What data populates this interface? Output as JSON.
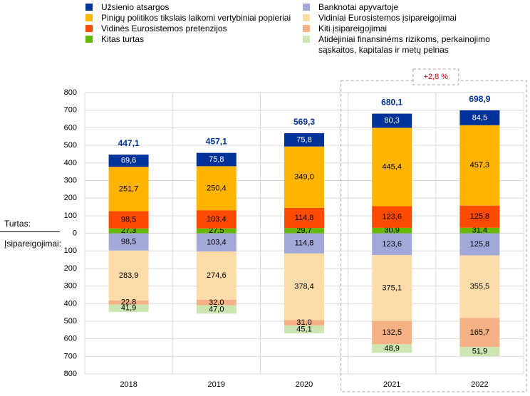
{
  "colors": {
    "uzsienio_atsargos": "#003299",
    "pinigu_politikos": "#ffb400",
    "vidines_pretenzijos": "#ff4b00",
    "kitas_turtas": "#65b800",
    "banknotai": "#a2a9d9",
    "vidiniai_isipareigojimai": "#fddcaa",
    "kiti_isipareigojimai": "#f5b183",
    "atidejiniai": "#cde5b0",
    "total_label": "#003299",
    "annotation": "#cc0000"
  },
  "legend": {
    "left": [
      {
        "key": "uzsienio_atsargos",
        "label": "Užsienio atsargos"
      },
      {
        "key": "pinigu_politikos",
        "label": "Pinigų politikos tikslais laikomi vertybiniai popieriai"
      },
      {
        "key": "vidines_pretenzijos",
        "label": "Vidinės Eurosistemos pretenzijos"
      },
      {
        "key": "kitas_turtas",
        "label": "Kitas turtas"
      }
    ],
    "right": [
      {
        "key": "banknotai",
        "label": "Banknotai apyvartoje"
      },
      {
        "key": "vidiniai_isipareigojimai",
        "label": "Vidiniai Eurosistemos įsipareigojimai"
      },
      {
        "key": "kiti_isipareigojimai",
        "label": "Kiti įsipareigojimai"
      },
      {
        "key": "atidejiniai",
        "label": "Atidėjiniai finansinėms rizikoms, perkainojimo",
        "label2": "sąskaitos, kapitalas ir metų pelnas"
      }
    ]
  },
  "side_labels": {
    "assets": "Turtas:",
    "liabilities": "Įsipareigojimai:"
  },
  "annotation": {
    "text": "+2,8 %"
  },
  "chart_data": {
    "type": "bar",
    "stacked": true,
    "categories": [
      "2018",
      "2019",
      "2020",
      "2021",
      "2022"
    ],
    "y_tick_labels": [
      "800",
      "700",
      "600",
      "500",
      "400",
      "300",
      "200",
      "100",
      "0",
      "100",
      "200",
      "300",
      "400",
      "500",
      "600",
      "700",
      "800"
    ],
    "ylim": [
      -800,
      800
    ],
    "grid": true,
    "totals": [
      "447,1",
      "457,1",
      "569,3",
      "680,1",
      "698,9"
    ],
    "assets": [
      {
        "key": "kitas_turtas",
        "name": "Kitas turtas",
        "values": [
          27.3,
          27.5,
          29.7,
          30.9,
          31.4
        ],
        "labels": [
          "27,3",
          "27,5",
          "29,7",
          "30,9",
          "31,4"
        ]
      },
      {
        "key": "vidines_pretenzijos",
        "name": "Vidinės Eurosistemos pretenzijos",
        "values": [
          98.5,
          103.4,
          114.8,
          123.6,
          125.8
        ],
        "labels": [
          "98,5",
          "103,4",
          "114,8",
          "123,6",
          "125,8"
        ]
      },
      {
        "key": "pinigu_politikos",
        "name": "Pinigų politikos tikslais laikomi vertybiniai popieriai",
        "values": [
          251.7,
          250.4,
          349.0,
          445.4,
          457.3
        ],
        "labels": [
          "251,7",
          "250,4",
          "349,0",
          "445,4",
          "457,3"
        ]
      },
      {
        "key": "uzsienio_atsargos",
        "name": "Užsienio atsargos",
        "values": [
          69.6,
          75.8,
          75.8,
          80.3,
          84.5
        ],
        "labels": [
          "69,6",
          "75,8",
          "75,8",
          "80,3",
          "84,5"
        ]
      }
    ],
    "liabilities": [
      {
        "key": "banknotai",
        "name": "Banknotai apyvartoje",
        "values": [
          98.5,
          103.4,
          114.8,
          123.6,
          125.8
        ],
        "labels": [
          "98,5",
          "103,4",
          "114,8",
          "123,6",
          "125,8"
        ]
      },
      {
        "key": "vidiniai_isipareigojimai",
        "name": "Vidiniai Eurosistemos įsipareigojimai",
        "values": [
          283.9,
          274.6,
          378.4,
          375.1,
          355.5
        ],
        "labels": [
          "283,9",
          "274,6",
          "378,4",
          "375,1",
          "355,5"
        ]
      },
      {
        "key": "kiti_isipareigojimai",
        "name": "Kiti įsipareigojimai",
        "values": [
          22.8,
          32.0,
          31.0,
          132.5,
          165.7
        ],
        "labels": [
          "22,8",
          "32,0",
          "31,0",
          "132,5",
          "165,7"
        ]
      },
      {
        "key": "atidejiniai",
        "name": "Atidėjiniai finansinėms rizikoms, perkainojimo sąskaitos, kapitalas ir metų pelnas",
        "values": [
          41.9,
          47.0,
          45.1,
          48.9,
          51.9
        ],
        "labels": [
          "41,9",
          "47,0",
          "45,1",
          "48,9",
          "51,9"
        ]
      }
    ]
  }
}
